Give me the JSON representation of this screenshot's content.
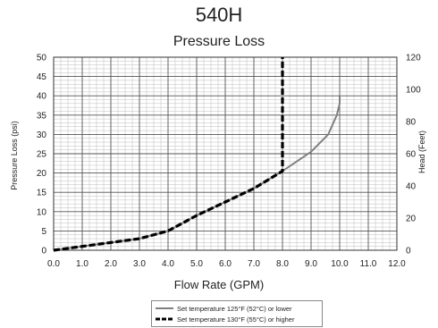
{
  "chart_data": {
    "type": "line",
    "title": "540H",
    "subtitle": "Pressure Loss",
    "xlabel": "Flow Rate (GPM)",
    "ylabel": "Pressure Loss (psi)",
    "y2label": "Head (Feet)",
    "xlim": [
      0,
      12
    ],
    "ylim": [
      0,
      50
    ],
    "y2lim": [
      0,
      120
    ],
    "x_ticks": [
      "0.0",
      "1.0",
      "2.0",
      "3.0",
      "4.0",
      "5.0",
      "6.0",
      "7.0",
      "8.0",
      "9.0",
      "10.0",
      "11.0",
      "12.0"
    ],
    "y_ticks": [
      "0",
      "5",
      "10",
      "15",
      "20",
      "25",
      "30",
      "35",
      "40",
      "45",
      "50"
    ],
    "y2_ticks": [
      "0",
      "20",
      "40",
      "60",
      "80",
      "100",
      "120"
    ],
    "grid": true,
    "legend_position": "bottom-center",
    "series": [
      {
        "name": "Set temperature 125°F (52°C) or lower",
        "color": "#808080",
        "style": "solid",
        "points": [
          [
            0,
            0
          ],
          [
            1,
            1
          ],
          [
            2,
            2
          ],
          [
            3,
            3
          ],
          [
            4,
            5
          ],
          [
            5,
            9
          ],
          [
            6,
            12.5
          ],
          [
            7,
            16
          ],
          [
            8,
            20.5
          ],
          [
            9,
            25.5
          ],
          [
            9.6,
            30
          ],
          [
            9.9,
            35
          ],
          [
            10,
            38
          ],
          [
            10,
            40
          ]
        ]
      },
      {
        "name": "Set temperature 130°F (55°C) or higher",
        "color": "#000000",
        "style": "dashed",
        "points": [
          [
            0,
            0
          ],
          [
            1,
            1
          ],
          [
            2,
            2
          ],
          [
            3,
            3
          ],
          [
            4,
            5
          ],
          [
            5,
            9
          ],
          [
            6,
            12.5
          ],
          [
            7,
            16
          ],
          [
            8,
            20.5
          ],
          [
            8,
            50
          ]
        ]
      }
    ]
  }
}
